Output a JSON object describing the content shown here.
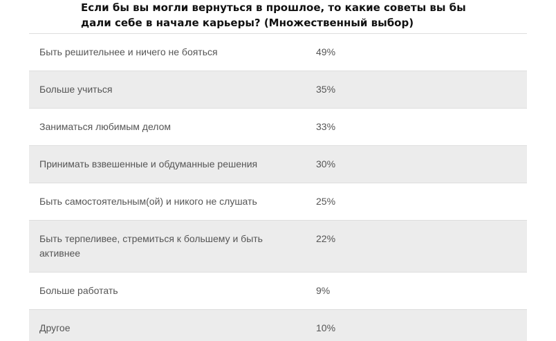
{
  "question": "Если бы вы могли вернуться в прошлое, то какие советы вы бы дали себе в начале карьеры? (Множественный выбор)",
  "rows": [
    {
      "answer": "Быть решительнее и ничего не бояться",
      "percent": "49%"
    },
    {
      "answer": "Больше учиться",
      "percent": "35%"
    },
    {
      "answer": "Заниматься любимым делом",
      "percent": "33%"
    },
    {
      "answer": "Принимать взвешенные и обдуманные решения",
      "percent": "30%"
    },
    {
      "answer": "Быть самостоятельным(ой) и никого не слушать",
      "percent": "25%"
    },
    {
      "answer": "Быть терпеливее, стремиться к большему и быть активнее",
      "percent": "22%"
    },
    {
      "answer": "Больше работать",
      "percent": "9%"
    },
    {
      "answer": "Другое",
      "percent": "10%"
    }
  ]
}
